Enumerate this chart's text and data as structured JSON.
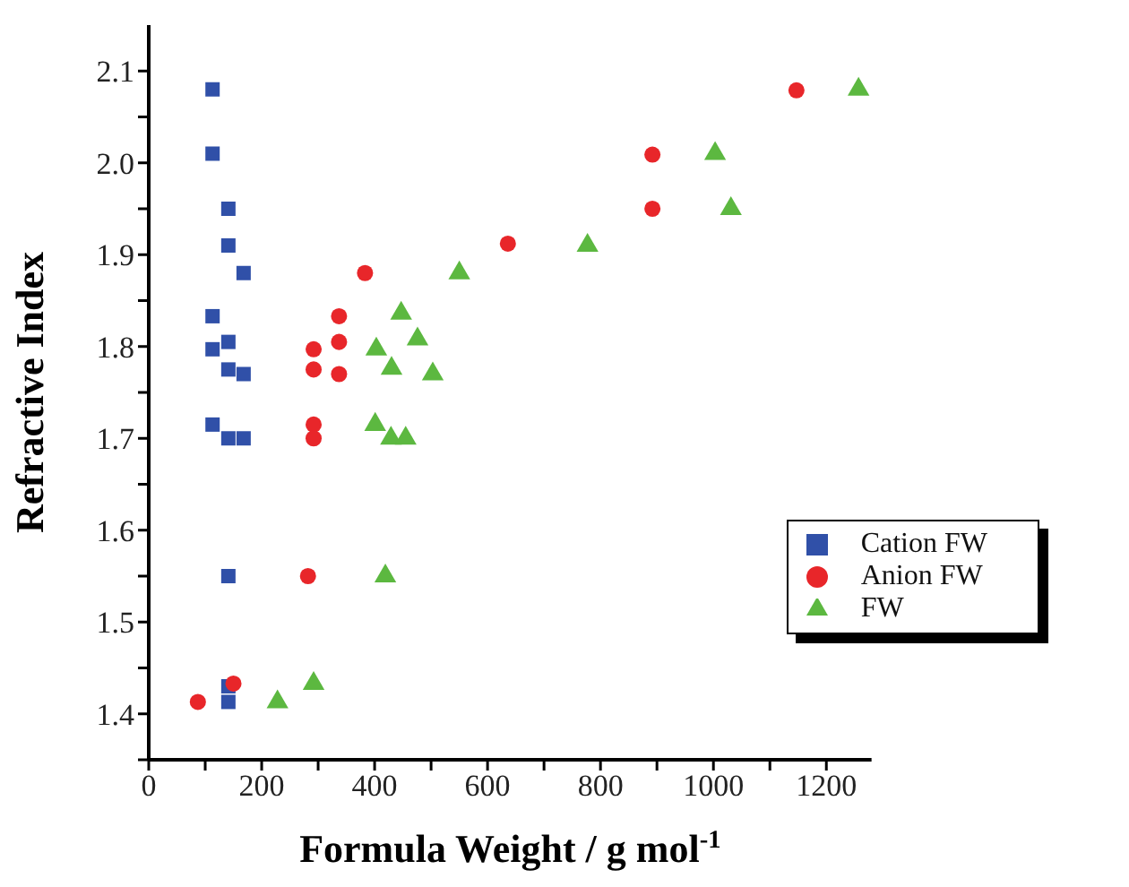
{
  "chart_data": {
    "type": "scatter",
    "xlabel": "Formula Weight / g mol$^{-1}$",
    "ylabel": "Refractive Index",
    "xlim": [
      0,
      1280
    ],
    "ylim": [
      1.35,
      2.15
    ],
    "xticks": [
      0,
      {
        "value": 100,
        "label": null
      },
      200,
      {
        "value": 300,
        "label": null
      },
      400,
      {
        "value": 500,
        "label": null
      },
      600,
      {
        "value": 700,
        "label": null
      },
      800,
      {
        "value": 900,
        "label": null
      },
      1000,
      {
        "value": 1100,
        "label": null
      },
      1200
    ],
    "yticks": [
      {
        "value": 1.35,
        "label": null
      },
      1.4,
      {
        "value": 1.45,
        "label": null
      },
      1.5,
      {
        "value": 1.55,
        "label": null
      },
      1.6,
      {
        "value": 1.65,
        "label": null
      },
      1.7,
      {
        "value": 1.75,
        "label": null
      },
      1.8,
      {
        "value": 1.85,
        "label": null
      },
      1.9,
      {
        "value": 1.95,
        "label": null
      },
      {
        "value": 2,
        "label": "2.0"
      },
      {
        "value": 2.05,
        "label": null
      },
      2.1
    ],
    "grid": false,
    "legend": "bottom right",
    "series": [
      {
        "name": "Cation FW",
        "color": "#3050a8",
        "marker": "square",
        "x": [
          113,
          113,
          141,
          141,
          168,
          113,
          113,
          141,
          141,
          168,
          113,
          141,
          168,
          141,
          141,
          141
        ],
        "values": [
          2.08,
          2.01,
          1.95,
          1.91,
          1.88,
          1.833,
          1.797,
          1.805,
          1.775,
          1.77,
          1.715,
          1.7,
          1.7,
          1.55,
          1.43,
          1.413
        ]
      },
      {
        "name": "Anion FW",
        "color": "#e8262a",
        "marker": "circle",
        "x": [
          292,
          292,
          292,
          292,
          337,
          337,
          337,
          383,
          282,
          87,
          150,
          636,
          892,
          892,
          1147
        ],
        "values": [
          1.797,
          1.775,
          1.715,
          1.7,
          1.833,
          1.805,
          1.77,
          1.88,
          1.55,
          1.413,
          1.433,
          1.912,
          2.009,
          1.95,
          2.079
        ]
      },
      {
        "name": "FW",
        "color": "#5cb840",
        "marker": "triangle",
        "x": [
          403,
          447,
          476,
          430,
          503,
          550,
          401,
          429,
          455,
          419,
          228,
          292,
          777,
          1003,
          1031,
          1257
        ],
        "values": [
          1.797,
          1.836,
          1.808,
          1.776,
          1.77,
          1.88,
          1.715,
          1.7,
          1.7,
          1.55,
          1.413,
          1.433,
          1.91,
          2.01,
          1.95,
          2.08
        ]
      }
    ]
  }
}
